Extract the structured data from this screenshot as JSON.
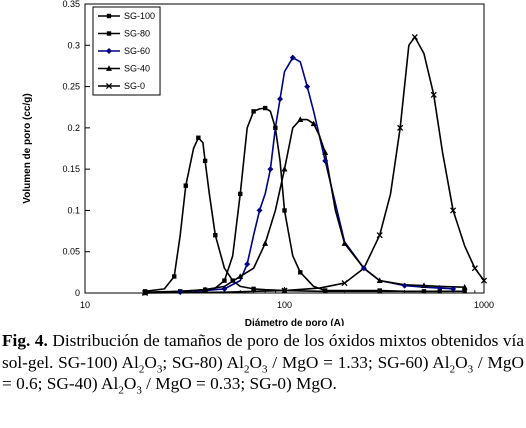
{
  "chart_data": {
    "type": "line",
    "title": "",
    "xlabel": "Diámetro de poro (A)",
    "ylabel": "Volumen de poro (cc/g)",
    "xscale": "log",
    "xlim": [
      10,
      1000
    ],
    "ylim": [
      0,
      0.35
    ],
    "xticks": [
      10,
      100,
      1000
    ],
    "xtick_labels": [
      "10",
      "100",
      "1000"
    ],
    "yticks": [
      0,
      0.05,
      0.1,
      0.15,
      0.2,
      0.25,
      0.3,
      0.35
    ],
    "ytick_labels": [
      "0",
      "0.05",
      "0.1",
      "0.15",
      "0.2",
      "0.25",
      "0.3",
      "0.35"
    ],
    "legend_position": "top-left",
    "series": [
      {
        "name": "SG-100",
        "marker": "square",
        "color": "#000000",
        "x": [
          20,
          25,
          30,
          35,
          40,
          45,
          50,
          55,
          60,
          65,
          70,
          75,
          80,
          85,
          90,
          95,
          100,
          110,
          120,
          140,
          160,
          200,
          300,
          400,
          500,
          800
        ],
        "y": [
          0,
          0.001,
          0.002,
          0.003,
          0.004,
          0.006,
          0.015,
          0.045,
          0.12,
          0.2,
          0.22,
          0.223,
          0.224,
          0.22,
          0.2,
          0.16,
          0.1,
          0.045,
          0.025,
          0.008,
          0.003,
          0.003,
          0.003,
          0.002,
          0.002,
          0.002
        ]
      },
      {
        "name": "SG-80",
        "marker": "square",
        "color": "#000000",
        "x": [
          20,
          25,
          28,
          30,
          32,
          35,
          37,
          39,
          40,
          42,
          45,
          50,
          55,
          60,
          70,
          80,
          100,
          150,
          300,
          600
        ],
        "y": [
          0.002,
          0.005,
          0.02,
          0.07,
          0.13,
          0.175,
          0.188,
          0.182,
          0.16,
          0.12,
          0.07,
          0.03,
          0.015,
          0.008,
          0.005,
          0.004,
          0.003,
          0.002,
          0.002,
          0.002
        ]
      },
      {
        "name": "SG-60",
        "marker": "diamond",
        "color": "#000080",
        "x": [
          30,
          40,
          50,
          60,
          65,
          70,
          75,
          80,
          85,
          90,
          95,
          100,
          110,
          120,
          130,
          140,
          160,
          200,
          250,
          300,
          400,
          500,
          600,
          700
        ],
        "y": [
          0.001,
          0.003,
          0.005,
          0.015,
          0.035,
          0.07,
          0.1,
          0.12,
          0.15,
          0.2,
          0.235,
          0.268,
          0.285,
          0.28,
          0.25,
          0.22,
          0.16,
          0.062,
          0.03,
          0.015,
          0.009,
          0.007,
          0.006,
          0.005
        ]
      },
      {
        "name": "SG-40",
        "marker": "triangle",
        "color": "#000000",
        "x": [
          20,
          30,
          40,
          50,
          60,
          70,
          80,
          90,
          100,
          110,
          120,
          130,
          140,
          150,
          160,
          180,
          200,
          250,
          300,
          400,
          500,
          600,
          800
        ],
        "y": [
          0.001,
          0.002,
          0.004,
          0.008,
          0.02,
          0.03,
          0.06,
          0.1,
          0.15,
          0.2,
          0.21,
          0.21,
          0.205,
          0.19,
          0.17,
          0.1,
          0.06,
          0.03,
          0.015,
          0.01,
          0.009,
          0.008,
          0.007
        ]
      },
      {
        "name": "SG-0",
        "marker": "x",
        "color": "#000000",
        "x": [
          20,
          50,
          100,
          150,
          200,
          250,
          300,
          340,
          380,
          420,
          450,
          500,
          560,
          620,
          700,
          800,
          900,
          1000
        ],
        "y": [
          0,
          0.001,
          0.003,
          0.006,
          0.012,
          0.03,
          0.07,
          0.12,
          0.2,
          0.3,
          0.31,
          0.29,
          0.24,
          0.17,
          0.1,
          0.057,
          0.03,
          0.015
        ]
      }
    ]
  },
  "caption": {
    "label": "Fig. 4.",
    "text": "Distribución de tamaños de poro de los óxidos mixtos obtenidos vía sol-gel. SG-100) Al2O3; SG-80) Al2O3 / MgO = 1.33; SG-60) Al2O3 / MgO = 0.6; SG-40) Al2O3 / MgO = 0.33; SG-0) MgO."
  }
}
